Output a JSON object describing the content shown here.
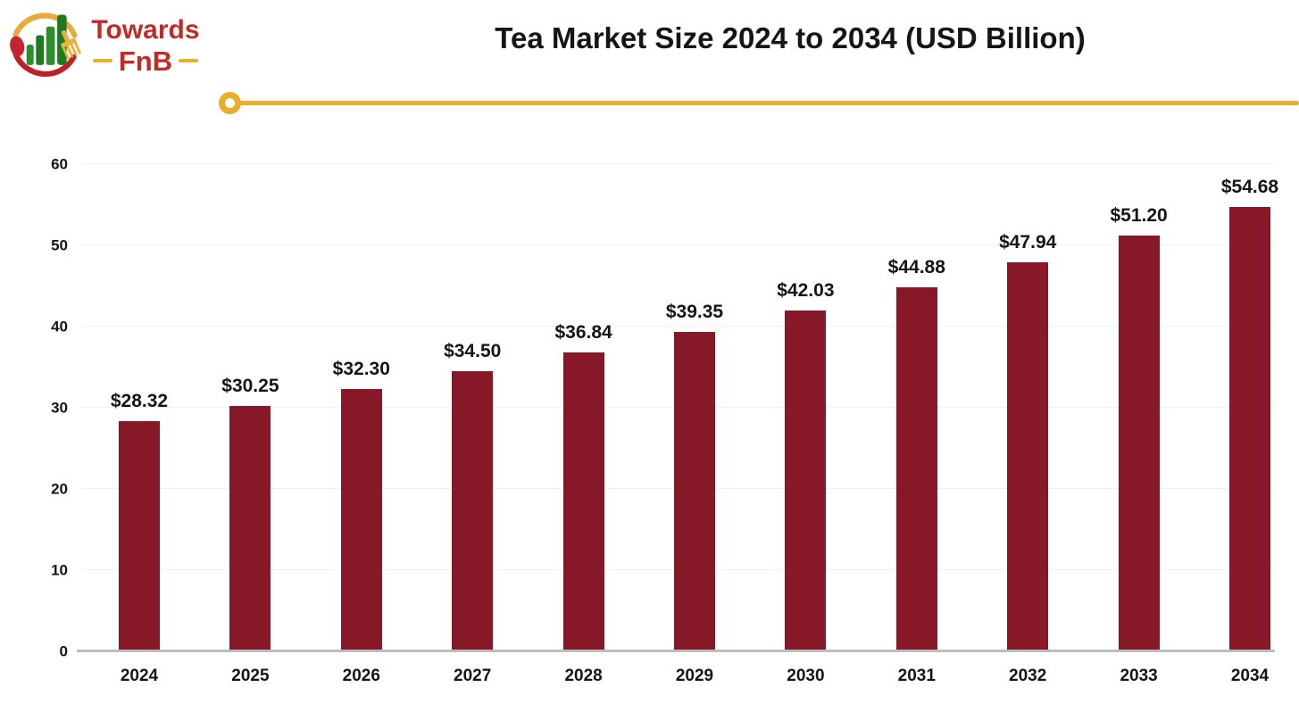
{
  "logo": {
    "brand_top": "Towards",
    "brand_bottom": "FnB"
  },
  "header": {
    "title": "Tea Market Size 2024 to 2034 (USD Billion)"
  },
  "theme": {
    "accent_gold": "#EBAE2C",
    "brand_red": "#C12B26",
    "bar_maroon": "#871828",
    "grid_gray": "#F0F0F0",
    "axis_gray": "#BDBDBD",
    "ink": "#151515"
  },
  "chart_data": {
    "type": "bar",
    "title": "Tea Market Size 2024 to 2034 (USD Billion)",
    "categories": [
      "2024",
      "2025",
      "2026",
      "2027",
      "2028",
      "2029",
      "2030",
      "2031",
      "2032",
      "2033",
      "2034"
    ],
    "values": [
      28.32,
      30.25,
      32.3,
      34.5,
      36.84,
      39.35,
      42.03,
      44.88,
      47.94,
      51.2,
      54.68
    ],
    "value_labels": [
      "$28.32",
      "$30.25",
      "$32.30",
      "$34.50",
      "$36.84",
      "$39.35",
      "$42.03",
      "$44.88",
      "$47.94",
      "$51.20",
      "$54.68"
    ],
    "xlabel": "",
    "ylabel": "",
    "ylim": [
      0,
      60
    ],
    "yticks": [
      0,
      10,
      20,
      30,
      40,
      50,
      60
    ],
    "bar_color": "#871828",
    "grid": true,
    "legend": false
  }
}
